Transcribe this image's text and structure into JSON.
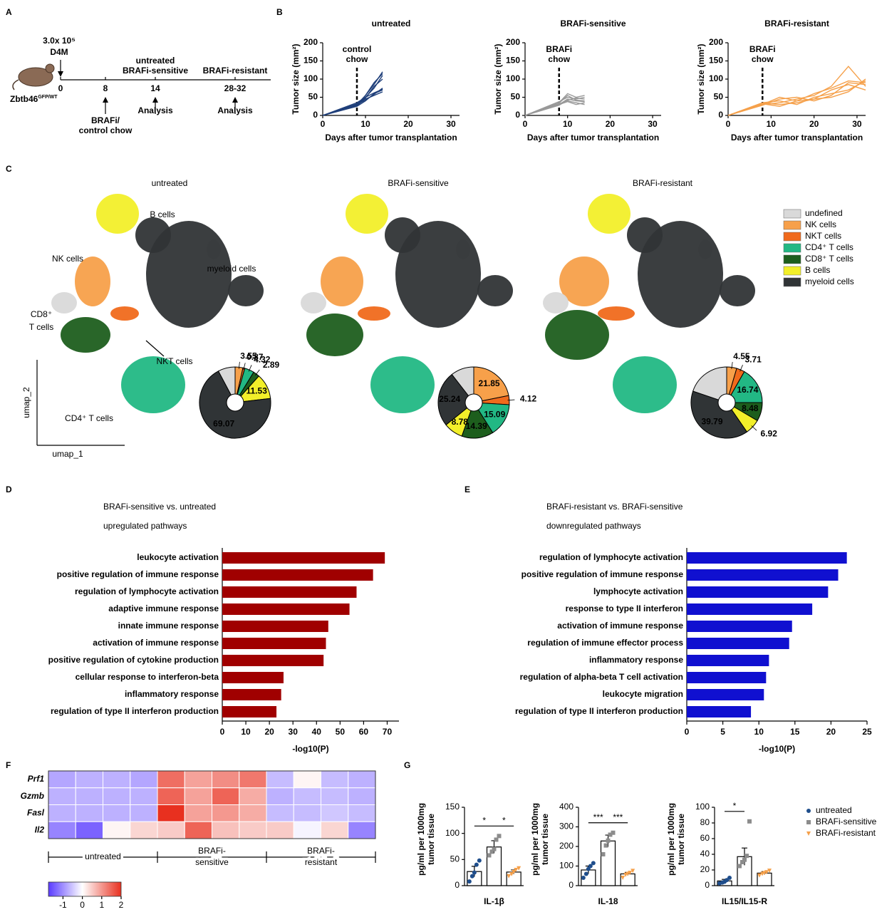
{
  "panel_labels": [
    "A",
    "B",
    "C",
    "D",
    "E",
    "F",
    "G"
  ],
  "schematic": {
    "dose": "3.0x 10⁵",
    "cells": "D4M",
    "mouse": "Zbtb46",
    "mouse_sup": "GFP/WT",
    "timepoints": [
      "0",
      "8",
      "14",
      "28-32"
    ],
    "groups_mid": [
      "untreated",
      "BRAFi-sensitive"
    ],
    "group_late": "BRAFi-resistant",
    "treatment": [
      "BRAFi/",
      "control chow"
    ],
    "analysis": [
      "Analysis",
      "Analysis"
    ]
  },
  "umap": {
    "cell_labels": [
      "B cells",
      "NK cells",
      "myeloid cells",
      "CD8⁺",
      "T cells",
      "NKT cells",
      "CD4⁺ T cells"
    ],
    "axis_labels": [
      "umap_2",
      "umap_1"
    ],
    "legend": {
      "names": [
        "undefined",
        "NK cells",
        "NKT cells",
        "CD4⁺ T cells",
        "CD8⁺ T cells",
        "B cells",
        "myeloid cells"
      ],
      "colors": [
        "#d9d9d9",
        "#f7a04a",
        "#f06a1c",
        "#22b884",
        "#1d5e1d",
        "#f2ef2a",
        "#303436"
      ]
    }
  },
  "panel_g_legend": {
    "names": [
      "untreated",
      "BRAFi-sensitive",
      "BRAFi-resistant"
    ],
    "colors": [
      "#1f4e8c",
      "#8c8c8c",
      "#f5a04a"
    ],
    "markers": [
      "circle",
      "square",
      "triangle"
    ]
  },
  "chart_data": [
    {
      "type": "line",
      "title": "untreated",
      "annotation": [
        "control",
        "chow"
      ],
      "annotation_x": 8,
      "ylabel": "Tumor size (mm²)",
      "xlabel": "Days after tumor transplantation",
      "xlim": [
        0,
        32
      ],
      "xticks": [
        0,
        10,
        20,
        30
      ],
      "ylim": [
        0,
        200
      ],
      "yticks": [
        0,
        50,
        100,
        150,
        200
      ],
      "color": "#1f3f7a",
      "x": [
        0,
        8,
        10,
        12,
        14
      ],
      "series": [
        {
          "values": [
            0,
            28,
            50,
            75,
            110
          ]
        },
        {
          "values": [
            0,
            30,
            55,
            85,
            120
          ]
        },
        {
          "values": [
            0,
            25,
            40,
            60,
            70
          ]
        },
        {
          "values": [
            0,
            32,
            45,
            55,
            65
          ]
        },
        {
          "values": [
            0,
            26,
            48,
            80,
            100
          ]
        },
        {
          "values": [
            0,
            30,
            42,
            58,
            75
          ]
        },
        {
          "values": [
            0,
            28,
            55,
            90,
            115
          ]
        },
        {
          "values": [
            0,
            35,
            50,
            62,
            72
          ]
        }
      ]
    },
    {
      "type": "line",
      "title": "BRAFi-sensitive",
      "annotation": [
        "BRAFi",
        "chow"
      ],
      "annotation_x": 8,
      "ylabel": "Tumor size (mm²)",
      "xlabel": "Days after tumor transplantation",
      "xlim": [
        0,
        32
      ],
      "xticks": [
        0,
        10,
        20,
        30
      ],
      "ylim": [
        0,
        200
      ],
      "yticks": [
        0,
        50,
        100,
        150,
        200
      ],
      "color": "#999999",
      "x": [
        0,
        8,
        10,
        12,
        14
      ],
      "series": [
        {
          "values": [
            0,
            35,
            60,
            50,
            55
          ]
        },
        {
          "values": [
            0,
            30,
            45,
            40,
            38
          ]
        },
        {
          "values": [
            0,
            38,
            50,
            45,
            50
          ]
        },
        {
          "values": [
            0,
            32,
            40,
            35,
            30
          ]
        },
        {
          "values": [
            0,
            28,
            42,
            48,
            45
          ]
        },
        {
          "values": [
            0,
            34,
            55,
            42,
            40
          ]
        },
        {
          "values": [
            0,
            30,
            38,
            30,
            35
          ]
        }
      ]
    },
    {
      "type": "line",
      "title": "BRAFi-resistant",
      "annotation": [
        "BRAFi",
        "chow"
      ],
      "annotation_x": 8,
      "ylabel": "Tumor size (mm²)",
      "xlabel": "Days after tumor transplantation",
      "xlim": [
        0,
        32
      ],
      "xticks": [
        0,
        10,
        20,
        30
      ],
      "ylim": [
        0,
        200
      ],
      "yticks": [
        0,
        50,
        100,
        150,
        200
      ],
      "color": "#f5a04a",
      "x": [
        0,
        8,
        12,
        16,
        20,
        24,
        28,
        32
      ],
      "series": [
        {
          "values": [
            0,
            30,
            35,
            45,
            55,
            80,
            135,
            80
          ]
        },
        {
          "values": [
            0,
            35,
            40,
            30,
            50,
            60,
            70,
            95
          ]
        },
        {
          "values": [
            0,
            28,
            45,
            50,
            40,
            55,
            90,
            85
          ]
        },
        {
          "values": [
            0,
            32,
            25,
            40,
            45,
            70,
            85,
            70
          ]
        },
        {
          "values": [
            0,
            30,
            50,
            40,
            60,
            75,
            95,
            90
          ]
        },
        {
          "values": [
            0,
            34,
            30,
            35,
            45,
            50,
            65,
            100
          ]
        }
      ]
    },
    {
      "type": "pie",
      "title": "untreated",
      "values": [
        7.77,
        3.55,
        0.87,
        4.32,
        2.89,
        11.53,
        69.07
      ],
      "value_labels": [
        null,
        "3.55",
        "0.87",
        "4.32",
        "2.89",
        "11.53",
        "69.07"
      ]
    },
    {
      "type": "pie",
      "title": "BRAFi-sensitive",
      "values": [
        10.53,
        21.85,
        4.12,
        15.09,
        14.39,
        8.78,
        25.24
      ],
      "value_labels": [
        null,
        "21.85",
        "4.12",
        "15.09",
        "14.39",
        "8.78",
        "25.24"
      ]
    },
    {
      "type": "pie",
      "title": "BRAFi-resistant",
      "values": [
        19.81,
        4.55,
        3.71,
        16.74,
        8.48,
        6.92,
        39.79
      ],
      "value_labels": [
        null,
        "4.55",
        "3.71",
        "16.74",
        "8.48",
        "6.92",
        "39.79"
      ]
    },
    {
      "type": "hbar",
      "title": [
        "BRAFi-sensitive vs. untreated",
        "upregulated pathways"
      ],
      "xlabel": "-log10(P)",
      "color": "#a00000",
      "categories": [
        "leukocyte activation",
        "positive regulation of immune response",
        "regulation of lymphocyte activation",
        "adaptive immune response",
        "innate immune response",
        "activation of immune response",
        "positive regulation of cytokine production",
        "cellular response to interferon-beta",
        "inflammatory response",
        "regulation of type II interferon production"
      ],
      "values": [
        69,
        64,
        57,
        54,
        45,
        44,
        43,
        26,
        25,
        23
      ],
      "xlim": [
        0,
        75
      ],
      "xticks": [
        0,
        10,
        20,
        30,
        40,
        50,
        60,
        70
      ]
    },
    {
      "type": "hbar",
      "title": [
        "BRAFi-resistant vs. BRAFi-sensitive",
        "downregulated pathways"
      ],
      "xlabel": "-log10(P)",
      "color": "#1010d0",
      "categories": [
        "regulation of lymphocyte activation",
        "positive regulation of immune response",
        "lymphocyte activation",
        "response to type II interferon",
        "activation of immune response",
        "regulation of immune effector process",
        "inflammatory response",
        "regulation of alpha-beta T cell activation",
        "leukocyte migration",
        "regulation of type II interferon production"
      ],
      "values": [
        22.2,
        21,
        19.6,
        17.4,
        14.6,
        14.2,
        11.4,
        11,
        10.7,
        8.9
      ],
      "xlim": [
        0,
        25
      ],
      "xticks": [
        0,
        5,
        10,
        15,
        20,
        25
      ]
    },
    {
      "type": "heatmap",
      "rows": [
        "Prf1",
        "Gzmb",
        "Fasl",
        "Il2"
      ],
      "values": [
        [
          -0.8,
          -0.7,
          -0.7,
          -0.8,
          1.4,
          0.9,
          1.1,
          1.3,
          -0.6,
          0.1,
          -0.6,
          -0.7
        ],
        [
          -0.7,
          -0.7,
          -0.7,
          -0.7,
          1.5,
          0.9,
          1.5,
          0.8,
          -0.7,
          -0.6,
          -0.6,
          -0.7
        ],
        [
          -0.7,
          -0.7,
          -0.7,
          -0.7,
          2.0,
          0.9,
          1.0,
          0.8,
          -0.6,
          -0.6,
          -0.5,
          -0.6
        ],
        [
          -1.1,
          -1.4,
          0.1,
          0.4,
          0.5,
          1.5,
          0.6,
          0.5,
          0.5,
          -0.1,
          0.4,
          -1.1
        ]
      ],
      "groups": [
        [
          "untreated"
        ],
        [
          "BRAFi-",
          "sensitive"
        ],
        [
          "BRAFi-",
          "resistant"
        ]
      ],
      "clim": [
        -1.75,
        2
      ],
      "cticks": [
        -1,
        0,
        1,
        2
      ]
    },
    {
      "type": "barpoints",
      "xlabel": "IL-1β",
      "ylabel": [
        "pg/ml per 1000mg",
        "tumor tissue"
      ],
      "ylim": [
        0,
        150
      ],
      "yticks": [
        0,
        50,
        100,
        150
      ],
      "values": [
        27,
        74,
        26
      ],
      "errors": [
        10,
        12,
        4
      ],
      "points": [
        [
          8,
          18,
          25,
          40,
          48
        ],
        [
          58,
          65,
          70,
          88,
          95
        ],
        [
          18,
          22,
          26,
          30,
          33
        ]
      ],
      "significance": [
        {
          "pair": [
            0,
            1
          ],
          "label": "*"
        },
        {
          "pair": [
            1,
            2
          ],
          "label": "*"
        }
      ]
    },
    {
      "type": "barpoints",
      "xlabel": "IL-18",
      "ylabel": [
        "pg/ml per 1000mg",
        "tumor tissue"
      ],
      "ylim": [
        0,
        400
      ],
      "yticks": [
        0,
        100,
        200,
        300,
        400
      ],
      "values": [
        80,
        228,
        60
      ],
      "errors": [
        20,
        30,
        8
      ],
      "points": [
        [
          40,
          60,
          85,
          100,
          115
        ],
        [
          160,
          205,
          230,
          260,
          270
        ],
        [
          40,
          55,
          60,
          65,
          75
        ]
      ],
      "significance": [
        {
          "pair": [
            0,
            1
          ],
          "label": "***"
        },
        {
          "pair": [
            1,
            2
          ],
          "label": "***"
        }
      ]
    },
    {
      "type": "barpoints",
      "xlabel": "IL15/IL15-R",
      "ylabel": [
        "pg/ml per 1000mg",
        "tumor tissue"
      ],
      "ylim": [
        0,
        100
      ],
      "yticks": [
        0,
        20,
        40,
        60,
        80,
        100
      ],
      "values": [
        6,
        37,
        16
      ],
      "errors": [
        2,
        11,
        2
      ],
      "points": [
        [
          3,
          4,
          5,
          7,
          10
        ],
        [
          25,
          30,
          33,
          38,
          82
        ],
        [
          13,
          15,
          16,
          17,
          19
        ]
      ],
      "significance": [
        {
          "pair": [
            0,
            1
          ],
          "label": "*"
        }
      ]
    }
  ]
}
